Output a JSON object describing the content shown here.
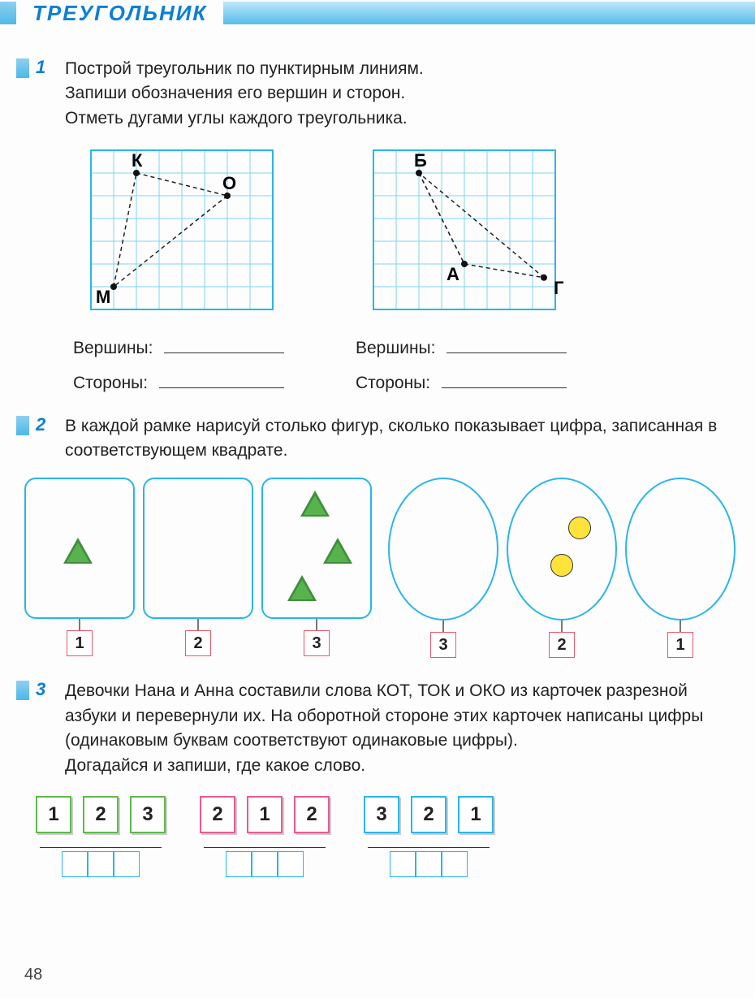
{
  "header": {
    "title": "ТРЕУГОЛЬНИК"
  },
  "task1": {
    "num": "1",
    "text1": "Построй треугольник по пунктирным линиям.",
    "text2": "Запиши обозначения его вершин и сторон.",
    "text3": "Отметь дугами углы каждого треугольника.",
    "grid": {
      "cols": 8,
      "rows": 7,
      "cell": 28,
      "line_color": "#7fd3f5",
      "border_color": "#29b6e8",
      "dash": "5 4",
      "point_r": 4
    },
    "left": {
      "points": {
        "K": {
          "x": 2,
          "y": 1,
          "label": "К"
        },
        "O": {
          "x": 6,
          "y": 2,
          "label": "О"
        },
        "M": {
          "x": 1,
          "y": 6,
          "label": "М"
        }
      }
    },
    "right": {
      "points": {
        "B": {
          "x": 2,
          "y": 1,
          "label": "Б"
        },
        "A": {
          "x": 4,
          "y": 5,
          "label": "А"
        },
        "G": {
          "x": 7.5,
          "y": 5.6,
          "label": "Г"
        }
      }
    },
    "labels": {
      "vertices": "Вершины:",
      "sides": "Стороны:"
    }
  },
  "task2": {
    "num": "2",
    "text": "В каждой рамке нарисуй столько фигур, сколько показывает цифра, записанная в соответствующем квадрате.",
    "left_nums": [
      "1",
      "2",
      "3"
    ],
    "right_nums": [
      "3",
      "2",
      "1"
    ],
    "colors": {
      "frame": "#29b6e8",
      "numbox_border": "#e85a6a",
      "tri_fill": "#58b24e",
      "tri_stroke": "#3f8f3d",
      "circle_fill": "#ffe23a",
      "circle_stroke": "#333333"
    }
  },
  "task3": {
    "num": "3",
    "text1": "Девочки Нана и Анна составили слова КОТ, ТОК и ОКО из карточек разрезной азбуки и перевернули их. На оборотной стороне этих карточек написаны цифры (одинаковым буквам соответствуют одинаковые цифры).",
    "text2": "Догадайся и запиши, где какое слово.",
    "sets": [
      {
        "color": "green",
        "vals": [
          "1",
          "2",
          "3"
        ]
      },
      {
        "color": "pink",
        "vals": [
          "2",
          "1",
          "2"
        ]
      },
      {
        "color": "blue",
        "vals": [
          "3",
          "2",
          "1"
        ]
      }
    ]
  },
  "page_number": "48"
}
